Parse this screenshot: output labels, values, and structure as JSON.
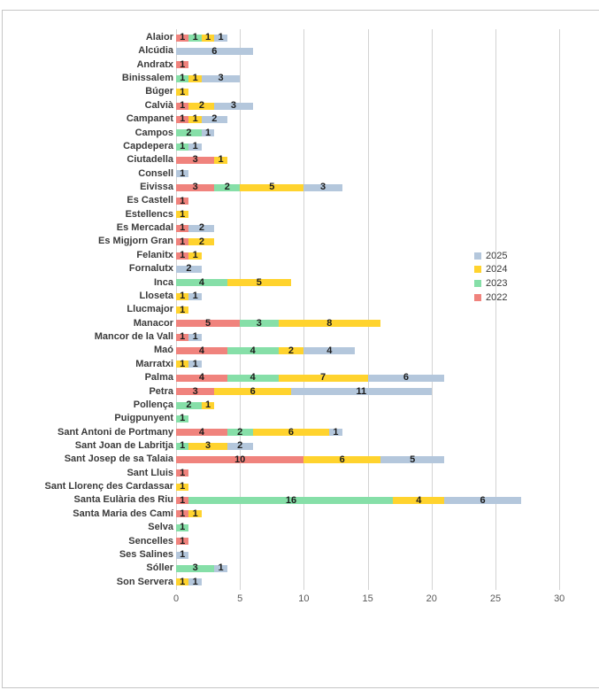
{
  "chart_data": {
    "type": "bar",
    "orientation": "horizontal-stacked",
    "title": "",
    "xlabel": "",
    "ylabel": "",
    "xlim": [
      0,
      31.1
    ],
    "x_ticks": [
      0,
      5,
      10,
      15,
      20,
      25,
      30
    ],
    "grid": "vertical",
    "value_labels": "each non-zero segment shows its value",
    "categories": [
      "Alaior",
      "Alcúdia",
      "Andratx",
      "Binissalem",
      "Búger",
      "Calvià",
      "Campanet",
      "Campos",
      "Capdepera",
      "Ciutadella",
      "Consell",
      "Eivissa",
      "Es Castell",
      "Estellencs",
      "Es Mercadal",
      "Es Migjorn Gran",
      "Felanitx",
      "Fornalutx",
      "Inca",
      "Lloseta",
      "Llucmajor",
      "Manacor",
      "Mancor de la Vall",
      "Maó",
      "Marratxi",
      "Palma",
      "Petra",
      "Pollença",
      "Puigpunyent",
      "Sant Antoni de Portmany",
      "Sant Joan de Labritja",
      "Sant Josep de sa Talaia",
      "Sant Lluis",
      "Sant Llorenç des Cardassar",
      "Santa Eulària des Riu",
      "Santa Maria des Camí",
      "Selva",
      "Sencelles",
      "Ses Salines",
      "Sóller",
      "Son Servera"
    ],
    "series": [
      {
        "name": "2022",
        "color": "#F0837D",
        "values": [
          1,
          0,
          1,
          0,
          0,
          1,
          1,
          0,
          0,
          3,
          0,
          3,
          1,
          0,
          1,
          1,
          1,
          0,
          0,
          0,
          0,
          5,
          1,
          4,
          0,
          4,
          3,
          0,
          0,
          4,
          0,
          10,
          1,
          0,
          1,
          1,
          0,
          1,
          0,
          0,
          0
        ]
      },
      {
        "name": "2023",
        "color": "#86DFA8",
        "values": [
          1,
          0,
          0,
          1,
          0,
          0,
          0,
          2,
          1,
          0,
          0,
          2,
          0,
          0,
          0,
          0,
          0,
          0,
          4,
          0,
          0,
          3,
          0,
          4,
          0,
          4,
          0,
          2,
          1,
          2,
          1,
          0,
          0,
          0,
          16,
          0,
          1,
          0,
          0,
          3,
          0
        ]
      },
      {
        "name": "2024",
        "color": "#FFD32E",
        "values": [
          1,
          0,
          0,
          1,
          1,
          2,
          1,
          0,
          0,
          1,
          0,
          5,
          0,
          1,
          0,
          2,
          1,
          0,
          5,
          1,
          1,
          8,
          0,
          2,
          1,
          7,
          6,
          1,
          0,
          6,
          3,
          6,
          0,
          1,
          4,
          1,
          0,
          0,
          0,
          0,
          1
        ]
      },
      {
        "name": "2025",
        "color": "#B4C7DC",
        "values": [
          1,
          6,
          0,
          3,
          0,
          3,
          2,
          1,
          1,
          0,
          1,
          3,
          0,
          0,
          2,
          0,
          0,
          2,
          0,
          1,
          0,
          0,
          1,
          4,
          1,
          6,
          11,
          0,
          0,
          1,
          2,
          5,
          0,
          0,
          6,
          0,
          0,
          0,
          1,
          1,
          1
        ]
      }
    ],
    "legend_position": "right"
  },
  "legend": {
    "items": [
      {
        "label": "2025",
        "color": "#B4C7DC"
      },
      {
        "label": "2024",
        "color": "#FFD32E"
      },
      {
        "label": "2023",
        "color": "#86DFA8"
      },
      {
        "label": "2022",
        "color": "#F0837D"
      }
    ]
  },
  "colors": {
    "background": "#ffffff",
    "frame_border": "#c6c6c6",
    "gridline": "#d3d3d3",
    "category_text": "#3a3a3a",
    "value_text": "#1c1c1c",
    "axis_text": "#595959"
  }
}
